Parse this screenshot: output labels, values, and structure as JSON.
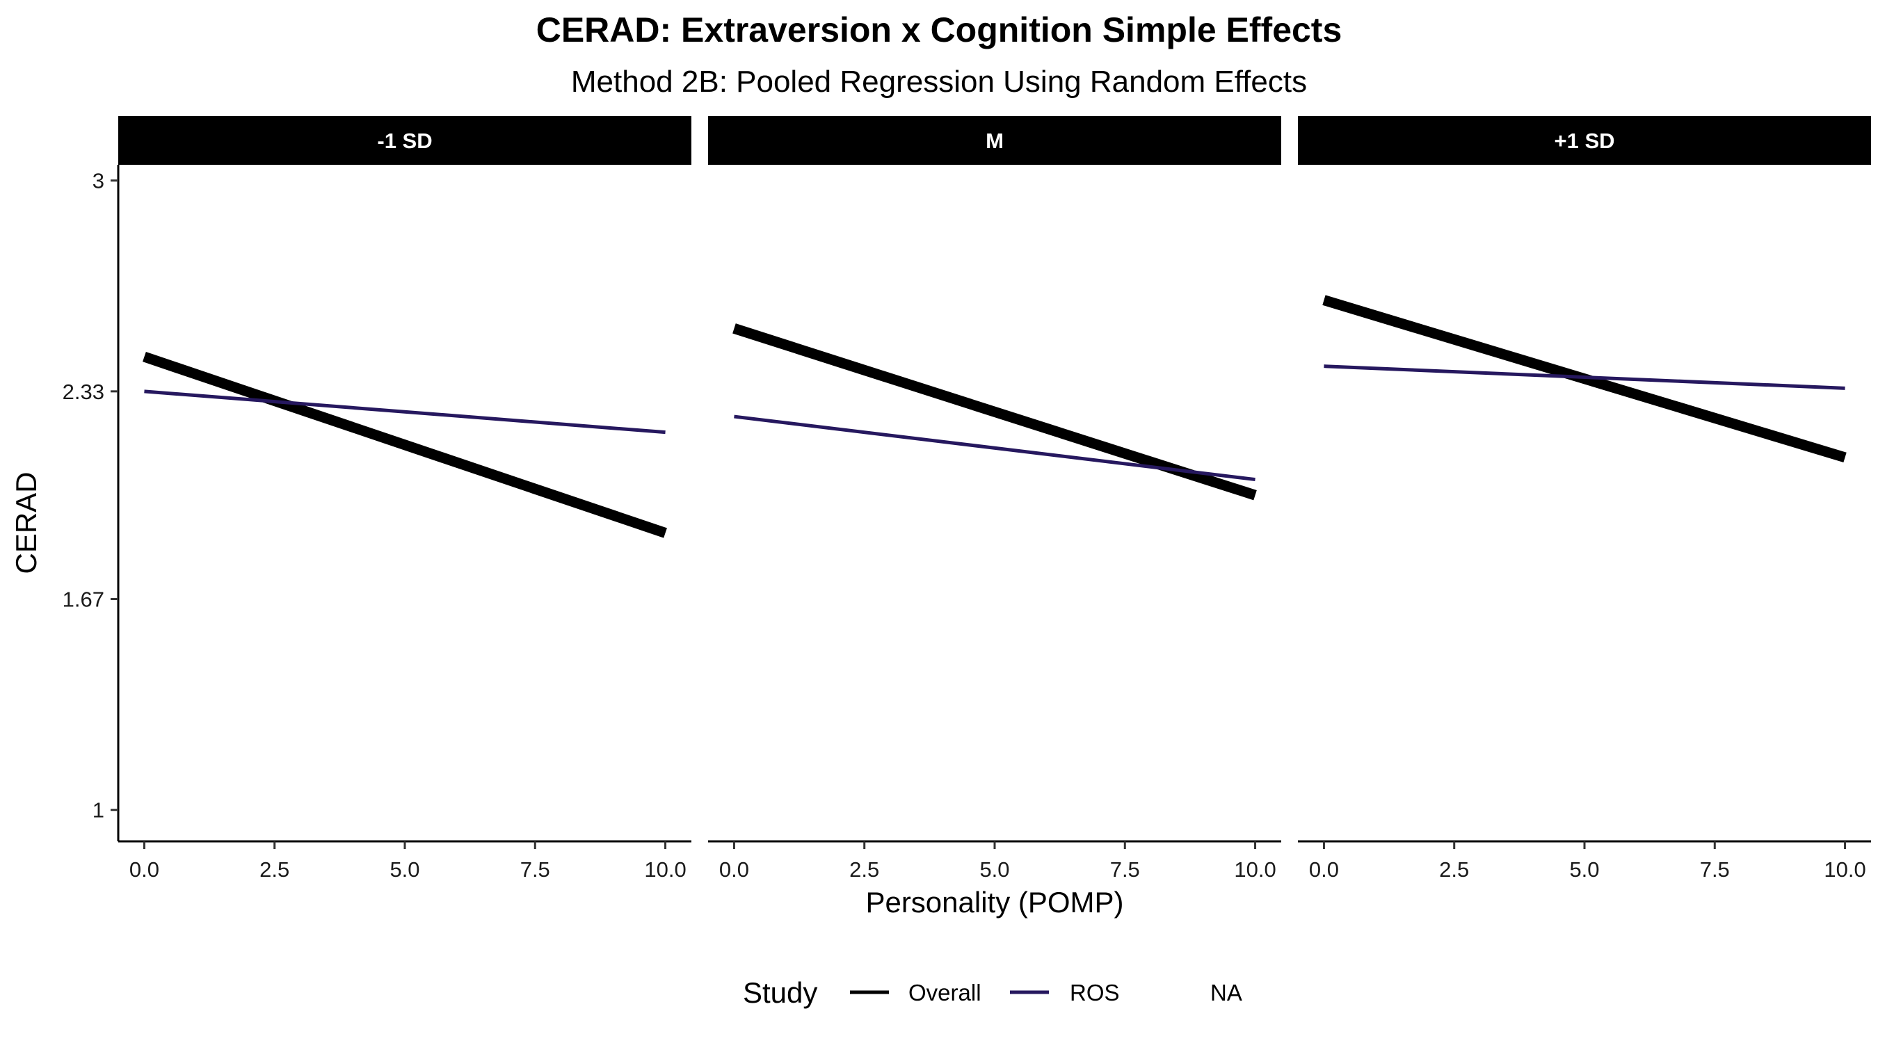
{
  "chart_data": {
    "type": "line",
    "title": "CERAD: Extraversion x Cognition Simple Effects",
    "subtitle": "Method 2B: Pooled Regression Using Random Effects",
    "xlabel": "Personality (POMP)",
    "ylabel": "CERAD",
    "xlim": [
      -0.5,
      10.5
    ],
    "ylim": [
      0.9,
      3.05
    ],
    "x_ticks": [
      0,
      2.5,
      5,
      7.5,
      10
    ],
    "x_tick_labels": [
      "0.0",
      "2.5",
      "5.0",
      "7.5",
      "10.0"
    ],
    "y_ticks": [
      1,
      1.67,
      2.33,
      3
    ],
    "y_tick_labels": [
      "1",
      "1.67",
      "2.33",
      "3"
    ],
    "grid": false,
    "legend": {
      "title": "Study",
      "position": "bottom",
      "entries": [
        {
          "label": "Overall",
          "color": "#000000"
        },
        {
          "label": "ROS",
          "color": "#26185f"
        },
        {
          "label": "NA",
          "color": null
        }
      ]
    },
    "colors": {
      "Overall": "#000000",
      "ROS": "#26185f"
    },
    "panels": [
      {
        "label": "-1 SD",
        "series": [
          {
            "name": "Overall",
            "x": [
              0,
              10
            ],
            "y": [
              2.44,
              1.88
            ]
          },
          {
            "name": "ROS",
            "x": [
              0,
              10
            ],
            "y": [
              2.33,
              2.2
            ]
          }
        ]
      },
      {
        "label": "M",
        "series": [
          {
            "name": "Overall",
            "x": [
              0,
              10
            ],
            "y": [
              2.53,
              2.0
            ]
          },
          {
            "name": "ROS",
            "x": [
              0,
              10
            ],
            "y": [
              2.25,
              2.05
            ]
          }
        ]
      },
      {
        "label": "+1 SD",
        "series": [
          {
            "name": "Overall",
            "x": [
              0,
              10
            ],
            "y": [
              2.62,
              2.12
            ]
          },
          {
            "name": "ROS",
            "x": [
              0,
              10
            ],
            "y": [
              2.41,
              2.34
            ]
          }
        ]
      }
    ]
  }
}
